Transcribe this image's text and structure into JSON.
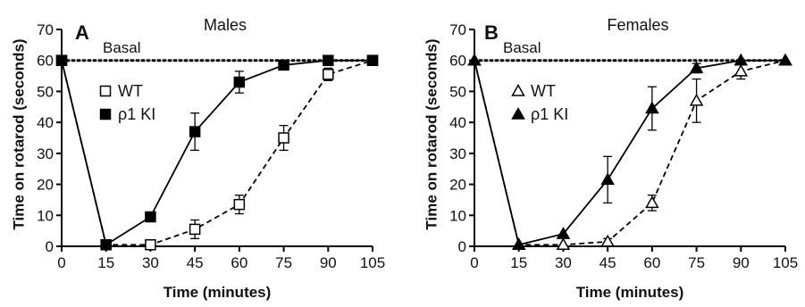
{
  "chart_data": [
    {
      "type": "line",
      "panel_label": "A",
      "title": "Males",
      "xlabel": "Time (minutes)",
      "ylabel": "Time on rotarod (seconds)",
      "x": [
        0,
        15,
        30,
        45,
        60,
        75,
        90,
        105
      ],
      "xticks": [
        "0",
        "15",
        "30",
        "45",
        "60",
        "75",
        "90",
        "105"
      ],
      "yticks": [
        "0",
        "10",
        "20",
        "30",
        "40",
        "50",
        "60",
        "70"
      ],
      "xlim": [
        0,
        105
      ],
      "ylim": [
        0,
        70
      ],
      "reference_line": {
        "label": "Basal",
        "y": 60,
        "style": "dotted"
      },
      "legend_position": "center-left",
      "series": [
        {
          "name": "WT",
          "marker": "open-square",
          "line": "dashed",
          "values": [
            60,
            0.5,
            0.5,
            5.5,
            13.5,
            35,
            55.5,
            60
          ],
          "errors": [
            0,
            0.3,
            0.5,
            3,
            3,
            4,
            2,
            0
          ]
        },
        {
          "name": "ρ1 KI",
          "marker": "filled-square",
          "line": "solid",
          "values": [
            60,
            0.5,
            9.5,
            37,
            53,
            58.5,
            60,
            60
          ],
          "errors": [
            0,
            0.3,
            1,
            6,
            3.5,
            1,
            0.5,
            0
          ]
        }
      ]
    },
    {
      "type": "line",
      "panel_label": "B",
      "title": "Females",
      "xlabel": "Time (minutes)",
      "ylabel": "Time on rotarod (seconds)",
      "x": [
        0,
        15,
        30,
        45,
        60,
        75,
        90,
        105
      ],
      "xticks": [
        "0",
        "15",
        "30",
        "45",
        "60",
        "75",
        "90",
        "105"
      ],
      "yticks": [
        "0",
        "10",
        "20",
        "30",
        "40",
        "50",
        "60",
        "70"
      ],
      "xlim": [
        0,
        105
      ],
      "ylim": [
        0,
        70
      ],
      "reference_line": {
        "label": "Basal",
        "y": 60,
        "style": "dotted"
      },
      "legend_position": "center-left",
      "series": [
        {
          "name": "WT",
          "marker": "open-triangle",
          "line": "dashed",
          "values": [
            60,
            0.5,
            0.5,
            1.5,
            14,
            47,
            56.5,
            60
          ],
          "errors": [
            0,
            0.3,
            0.5,
            1,
            2.5,
            7,
            2.5,
            0
          ]
        },
        {
          "name": "ρ1 KI",
          "marker": "filled-triangle",
          "line": "solid",
          "values": [
            60,
            0.5,
            4,
            21.5,
            44.5,
            57.5,
            60,
            60
          ],
          "errors": [
            0,
            0.3,
            0.5,
            7.5,
            7,
            1.5,
            0.5,
            0
          ]
        }
      ]
    }
  ]
}
